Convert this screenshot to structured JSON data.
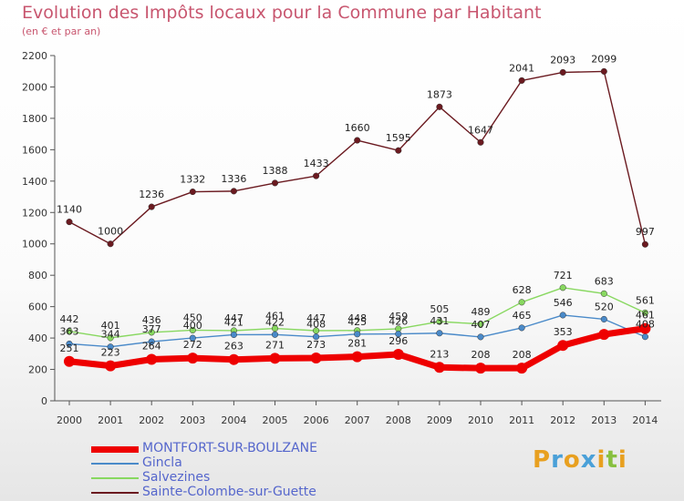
{
  "header": {
    "title": "Evolution des Impôts locaux pour la Commune par Habitant",
    "subtitle": "(en € et par an)"
  },
  "logo": {
    "text": "Proxiti"
  },
  "chart_data": {
    "type": "line",
    "x": [
      "2000",
      "2001",
      "2002",
      "2003",
      "2004",
      "2005",
      "2006",
      "2007",
      "2008",
      "2009",
      "2010",
      "2011",
      "2012",
      "2013",
      "2014"
    ],
    "ylim": [
      0,
      2200
    ],
    "yticks": [
      0,
      200,
      400,
      600,
      800,
      1000,
      1200,
      1400,
      1600,
      1800,
      2000,
      2200
    ],
    "grid": false,
    "legend_position": "bottom-left",
    "series": [
      {
        "name": "MONTFORT-SUR-BOULZANE",
        "color": "#ee0000",
        "emphasis": true,
        "values": [
          251,
          223,
          264,
          272,
          263,
          271,
          273,
          281,
          296,
          213,
          208,
          208,
          353,
          423,
          461
        ],
        "labels": [
          "251",
          "223",
          "264",
          "272",
          "263",
          "271",
          "273",
          "281",
          "296",
          "213",
          "208",
          "208",
          "353",
          "",
          "461"
        ]
      },
      {
        "name": "Gincla",
        "color": "#4a8ac9",
        "values": [
          363,
          344,
          377,
          400,
          421,
          422,
          408,
          425,
          426,
          431,
          407,
          465,
          546,
          520,
          408
        ],
        "labels": [
          "363",
          "344",
          "377",
          "400",
          "421",
          "422",
          "408",
          "425",
          "426",
          "431",
          "407",
          "465",
          "546",
          "520",
          "408"
        ]
      },
      {
        "name": "Salvezines",
        "color": "#88d860",
        "values": [
          442,
          401,
          436,
          450,
          447,
          461,
          447,
          448,
          459,
          505,
          489,
          628,
          721,
          683,
          561
        ],
        "labels": [
          "442",
          "401",
          "436",
          "450",
          "447",
          "461",
          "447",
          "448",
          "459",
          "505",
          "489",
          "628",
          "721",
          "683",
          "561"
        ]
      },
      {
        "name": "Sainte-Colombe-sur-Guette",
        "color": "#6b1a20",
        "values": [
          1140,
          1000,
          1236,
          1332,
          1336,
          1388,
          1433,
          1660,
          1595,
          1873,
          1647,
          2041,
          2093,
          2099,
          997
        ],
        "labels": [
          "1140",
          "1000",
          "1236",
          "1332",
          "1336",
          "1388",
          "1433",
          "1660",
          "1595",
          "1873",
          "1647",
          "2041",
          "2093",
          "2099",
          "997"
        ]
      }
    ]
  }
}
